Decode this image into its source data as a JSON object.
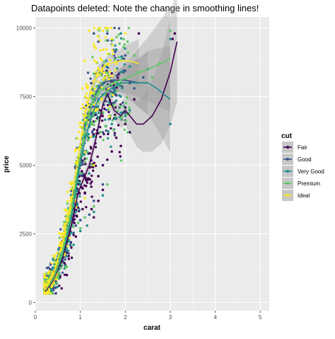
{
  "chart_data": {
    "type": "scatter",
    "title": "Datapoints deleted: Note the change in smoothing lines!",
    "xlabel": "carat",
    "ylabel": "price",
    "xlim": [
      0,
      5.2
    ],
    "ylim": [
      -300,
      10400
    ],
    "x_ticks": [
      0,
      1,
      2,
      3,
      4,
      5
    ],
    "x_tick_labels": [
      "0",
      "1",
      "2",
      "3",
      "4",
      "5"
    ],
    "y_ticks": [
      0,
      2500,
      5000,
      7500,
      10000
    ],
    "y_tick_labels": [
      "0",
      "2500",
      "5000",
      "7500",
      "10000"
    ],
    "grid": true,
    "legend": {
      "title": "cut",
      "position": "right"
    },
    "series": [
      {
        "name": "Fair",
        "color": "#440154",
        "smooth": [
          [
            0.22,
            400
          ],
          [
            0.4,
            800
          ],
          [
            0.6,
            1600
          ],
          [
            0.8,
            2800
          ],
          [
            0.95,
            4000
          ],
          [
            1.05,
            4400
          ],
          [
            1.2,
            5000
          ],
          [
            1.35,
            6000
          ],
          [
            1.5,
            7200
          ],
          [
            1.6,
            7600
          ],
          [
            1.75,
            7000
          ],
          [
            1.9,
            6800
          ],
          [
            2.0,
            7000
          ],
          [
            2.1,
            6800
          ],
          [
            2.25,
            6500
          ],
          [
            2.4,
            6500
          ],
          [
            2.6,
            6800
          ],
          [
            2.8,
            7400
          ],
          [
            3.0,
            8400
          ],
          [
            3.15,
            9500
          ]
        ],
        "points": [
          [
            0.8,
            2000
          ],
          [
            1.0,
            3000
          ],
          [
            1.05,
            3400
          ],
          [
            1.25,
            3400
          ],
          [
            1.3,
            3100
          ],
          [
            1.4,
            3700
          ],
          [
            1.5,
            4100
          ],
          [
            1.5,
            5000
          ],
          [
            1.2,
            4500
          ],
          [
            1.7,
            5500
          ],
          [
            1.8,
            6000
          ],
          [
            1.9,
            5700
          ],
          [
            2.0,
            6500
          ],
          [
            2.0,
            7100
          ],
          [
            2.1,
            6200
          ],
          [
            2.2,
            7400
          ],
          [
            2.1,
            8000
          ],
          [
            2.3,
            9800
          ],
          [
            3.05,
            9600
          ],
          [
            3.1,
            9800
          ],
          [
            1.1,
            4000
          ],
          [
            0.9,
            2400
          ],
          [
            0.7,
            1000
          ],
          [
            1.6,
            5200
          ],
          [
            1.4,
            4600
          ]
        ]
      },
      {
        "name": "Good",
        "color": "#3b528b",
        "smooth": [
          [
            0.22,
            500
          ],
          [
            0.4,
            900
          ],
          [
            0.6,
            1800
          ],
          [
            0.8,
            3200
          ],
          [
            0.95,
            4800
          ],
          [
            1.1,
            6300
          ],
          [
            1.25,
            7200
          ],
          [
            1.4,
            7800
          ],
          [
            1.5,
            8000
          ],
          [
            1.7,
            8100
          ],
          [
            2.0,
            8100
          ],
          [
            2.3,
            8000
          ],
          [
            2.5,
            8000
          ]
        ],
        "points": [
          [
            1.0,
            3000
          ],
          [
            1.2,
            3200
          ],
          [
            1.3,
            3700
          ],
          [
            1.5,
            4300
          ],
          [
            1.3,
            9800
          ],
          [
            1.4,
            9500
          ],
          [
            1.6,
            9800
          ],
          [
            1.8,
            9200
          ],
          [
            1.8,
            6700
          ],
          [
            2.0,
            6900
          ],
          [
            2.0,
            9000
          ],
          [
            2.2,
            7800
          ],
          [
            2.4,
            8200
          ],
          [
            1.5,
            6200
          ],
          [
            1.1,
            5500
          ],
          [
            0.9,
            2800
          ]
        ]
      },
      {
        "name": "Very Good",
        "color": "#21908c",
        "smooth": [
          [
            0.22,
            450
          ],
          [
            0.4,
            850
          ],
          [
            0.6,
            1700
          ],
          [
            0.8,
            3100
          ],
          [
            0.95,
            4600
          ],
          [
            1.1,
            5900
          ],
          [
            1.25,
            6800
          ],
          [
            1.4,
            7400
          ],
          [
            1.6,
            7700
          ],
          [
            1.9,
            8000
          ],
          [
            2.2,
            8000
          ],
          [
            2.5,
            8000
          ],
          [
            2.7,
            7800
          ],
          [
            2.85,
            7600
          ],
          [
            3.0,
            7400
          ]
        ],
        "points": [
          [
            1.0,
            2600
          ],
          [
            1.15,
            2800
          ],
          [
            1.3,
            3300
          ],
          [
            1.5,
            3900
          ],
          [
            1.7,
            6500
          ],
          [
            1.9,
            7500
          ],
          [
            2.0,
            6800
          ],
          [
            2.1,
            7000
          ],
          [
            1.9,
            9800
          ],
          [
            1.7,
            9400
          ],
          [
            2.1,
            8600
          ],
          [
            2.5,
            8500
          ],
          [
            3.0,
            6500
          ],
          [
            3.0,
            9600
          ],
          [
            1.2,
            4700
          ],
          [
            0.85,
            2100
          ]
        ]
      },
      {
        "name": "Premium",
        "color": "#5ec962",
        "smooth": [
          [
            0.22,
            450
          ],
          [
            0.4,
            850
          ],
          [
            0.6,
            1800
          ],
          [
            0.8,
            3300
          ],
          [
            0.95,
            4900
          ],
          [
            1.1,
            6300
          ],
          [
            1.25,
            7200
          ],
          [
            1.4,
            7700
          ],
          [
            1.6,
            7900
          ],
          [
            1.9,
            8100
          ],
          [
            2.2,
            8300
          ],
          [
            2.5,
            8500
          ],
          [
            2.8,
            8700
          ],
          [
            3.0,
            8900
          ]
        ],
        "points": [
          [
            1.0,
            2700
          ],
          [
            1.1,
            3100
          ],
          [
            1.3,
            3500
          ],
          [
            1.6,
            4300
          ],
          [
            1.9,
            6700
          ],
          [
            2.0,
            7000
          ],
          [
            2.2,
            9000
          ],
          [
            1.4,
            9700
          ],
          [
            1.6,
            9900
          ],
          [
            2.05,
            9500
          ],
          [
            2.3,
            8400
          ],
          [
            2.6,
            8200
          ],
          [
            3.0,
            9900
          ],
          [
            2.75,
            8700
          ],
          [
            1.25,
            5000
          ],
          [
            0.95,
            2900
          ],
          [
            0.7,
            1300
          ]
        ]
      },
      {
        "name": "Ideal",
        "color": "#fde725",
        "smooth": [
          [
            0.22,
            450
          ],
          [
            0.4,
            1000
          ],
          [
            0.6,
            2200
          ],
          [
            0.8,
            3700
          ],
          [
            0.95,
            5300
          ],
          [
            1.1,
            6800
          ],
          [
            1.25,
            7800
          ],
          [
            1.4,
            8400
          ],
          [
            1.6,
            8700
          ],
          [
            1.9,
            8800
          ],
          [
            2.1,
            8800
          ],
          [
            2.3,
            8700
          ]
        ],
        "points": [
          [
            0.3,
            400
          ],
          [
            0.5,
            1400
          ],
          [
            0.6,
            2500
          ],
          [
            0.7,
            3200
          ],
          [
            0.8,
            4300
          ],
          [
            0.9,
            5100
          ],
          [
            1.0,
            6400
          ],
          [
            1.05,
            7800
          ],
          [
            1.1,
            8800
          ],
          [
            1.2,
            9900
          ],
          [
            1.3,
            9400
          ],
          [
            1.5,
            9900
          ],
          [
            1.7,
            9600
          ],
          [
            1.1,
            3800
          ],
          [
            1.3,
            5000
          ],
          [
            1.6,
            7700
          ],
          [
            2.0,
            9800
          ],
          [
            0.4,
            1700
          ],
          [
            0.55,
            2100
          ]
        ]
      }
    ]
  }
}
